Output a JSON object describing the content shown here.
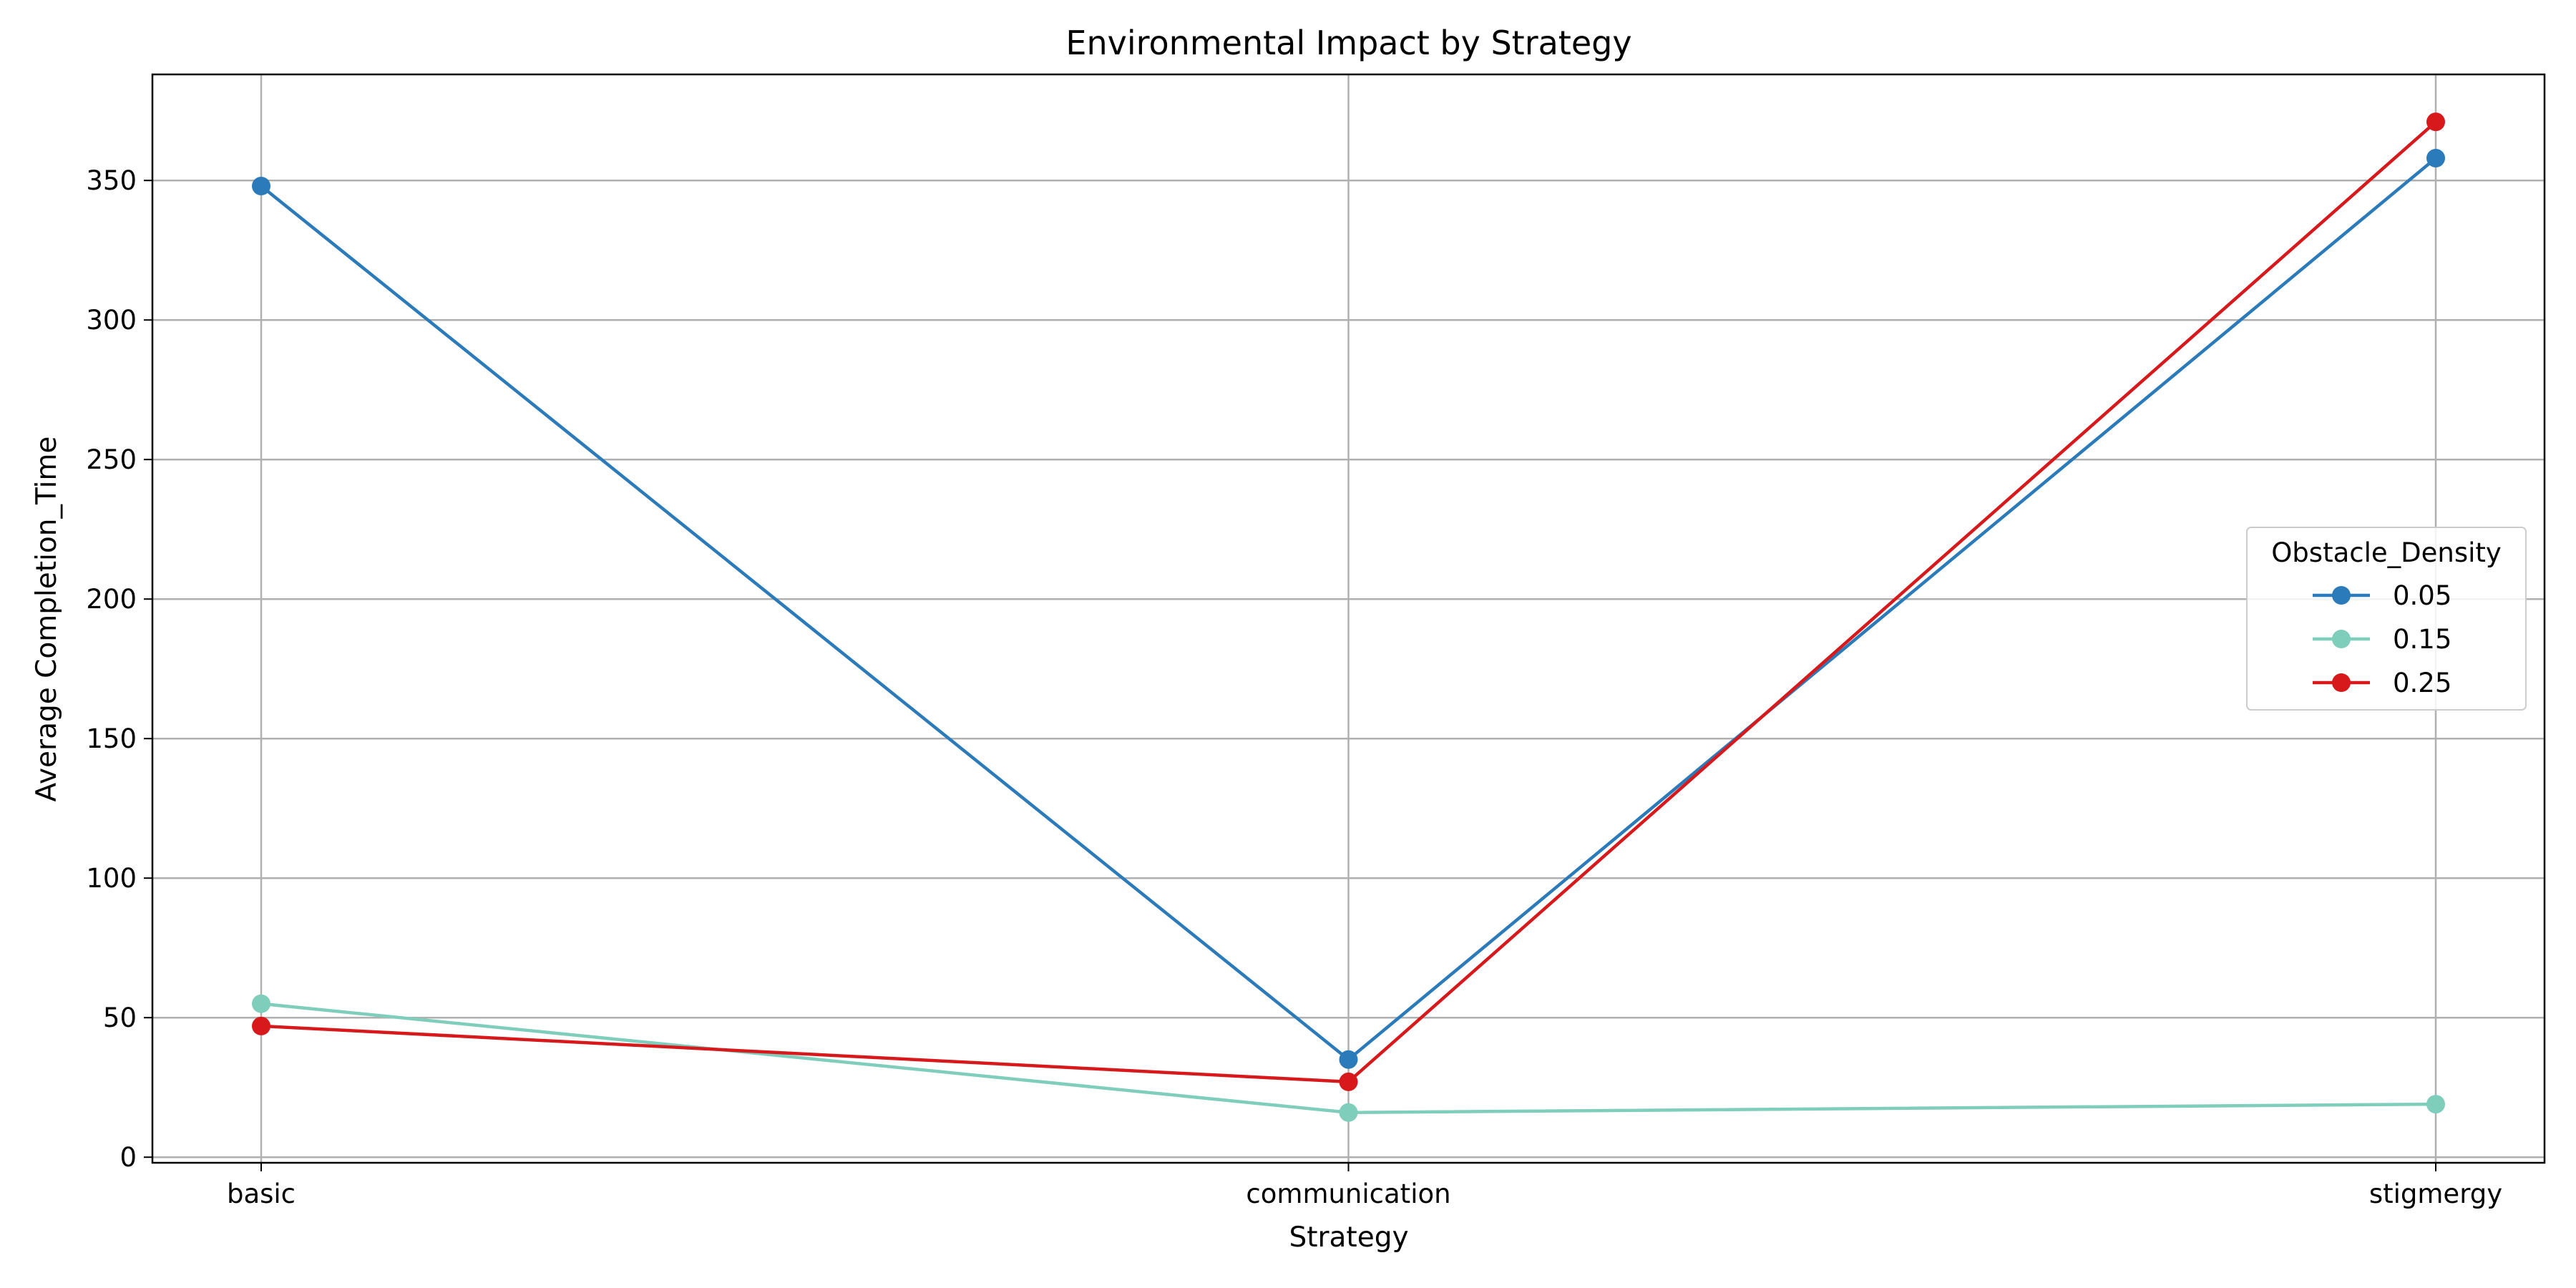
{
  "chart_data": {
    "type": "line",
    "title": "Environmental Impact by Strategy",
    "xlabel": "Strategy",
    "ylabel": "Average Completion_Time",
    "categories": [
      "basic",
      "communication",
      "stigmergy"
    ],
    "ylim": [
      -2,
      388
    ],
    "yticks": [
      0,
      50,
      100,
      150,
      200,
      250,
      300,
      350
    ],
    "grid": true,
    "legend": {
      "title": "Obstacle_Density",
      "placement": "center-right"
    },
    "series": [
      {
        "name": "0.05",
        "color": "#2b7bba",
        "values": [
          348,
          35,
          358
        ]
      },
      {
        "name": "0.15",
        "color": "#7fcdbb",
        "values": [
          55,
          16,
          19
        ]
      },
      {
        "name": "0.25",
        "color": "#d7191c",
        "values": [
          47,
          27,
          371
        ]
      }
    ]
  }
}
